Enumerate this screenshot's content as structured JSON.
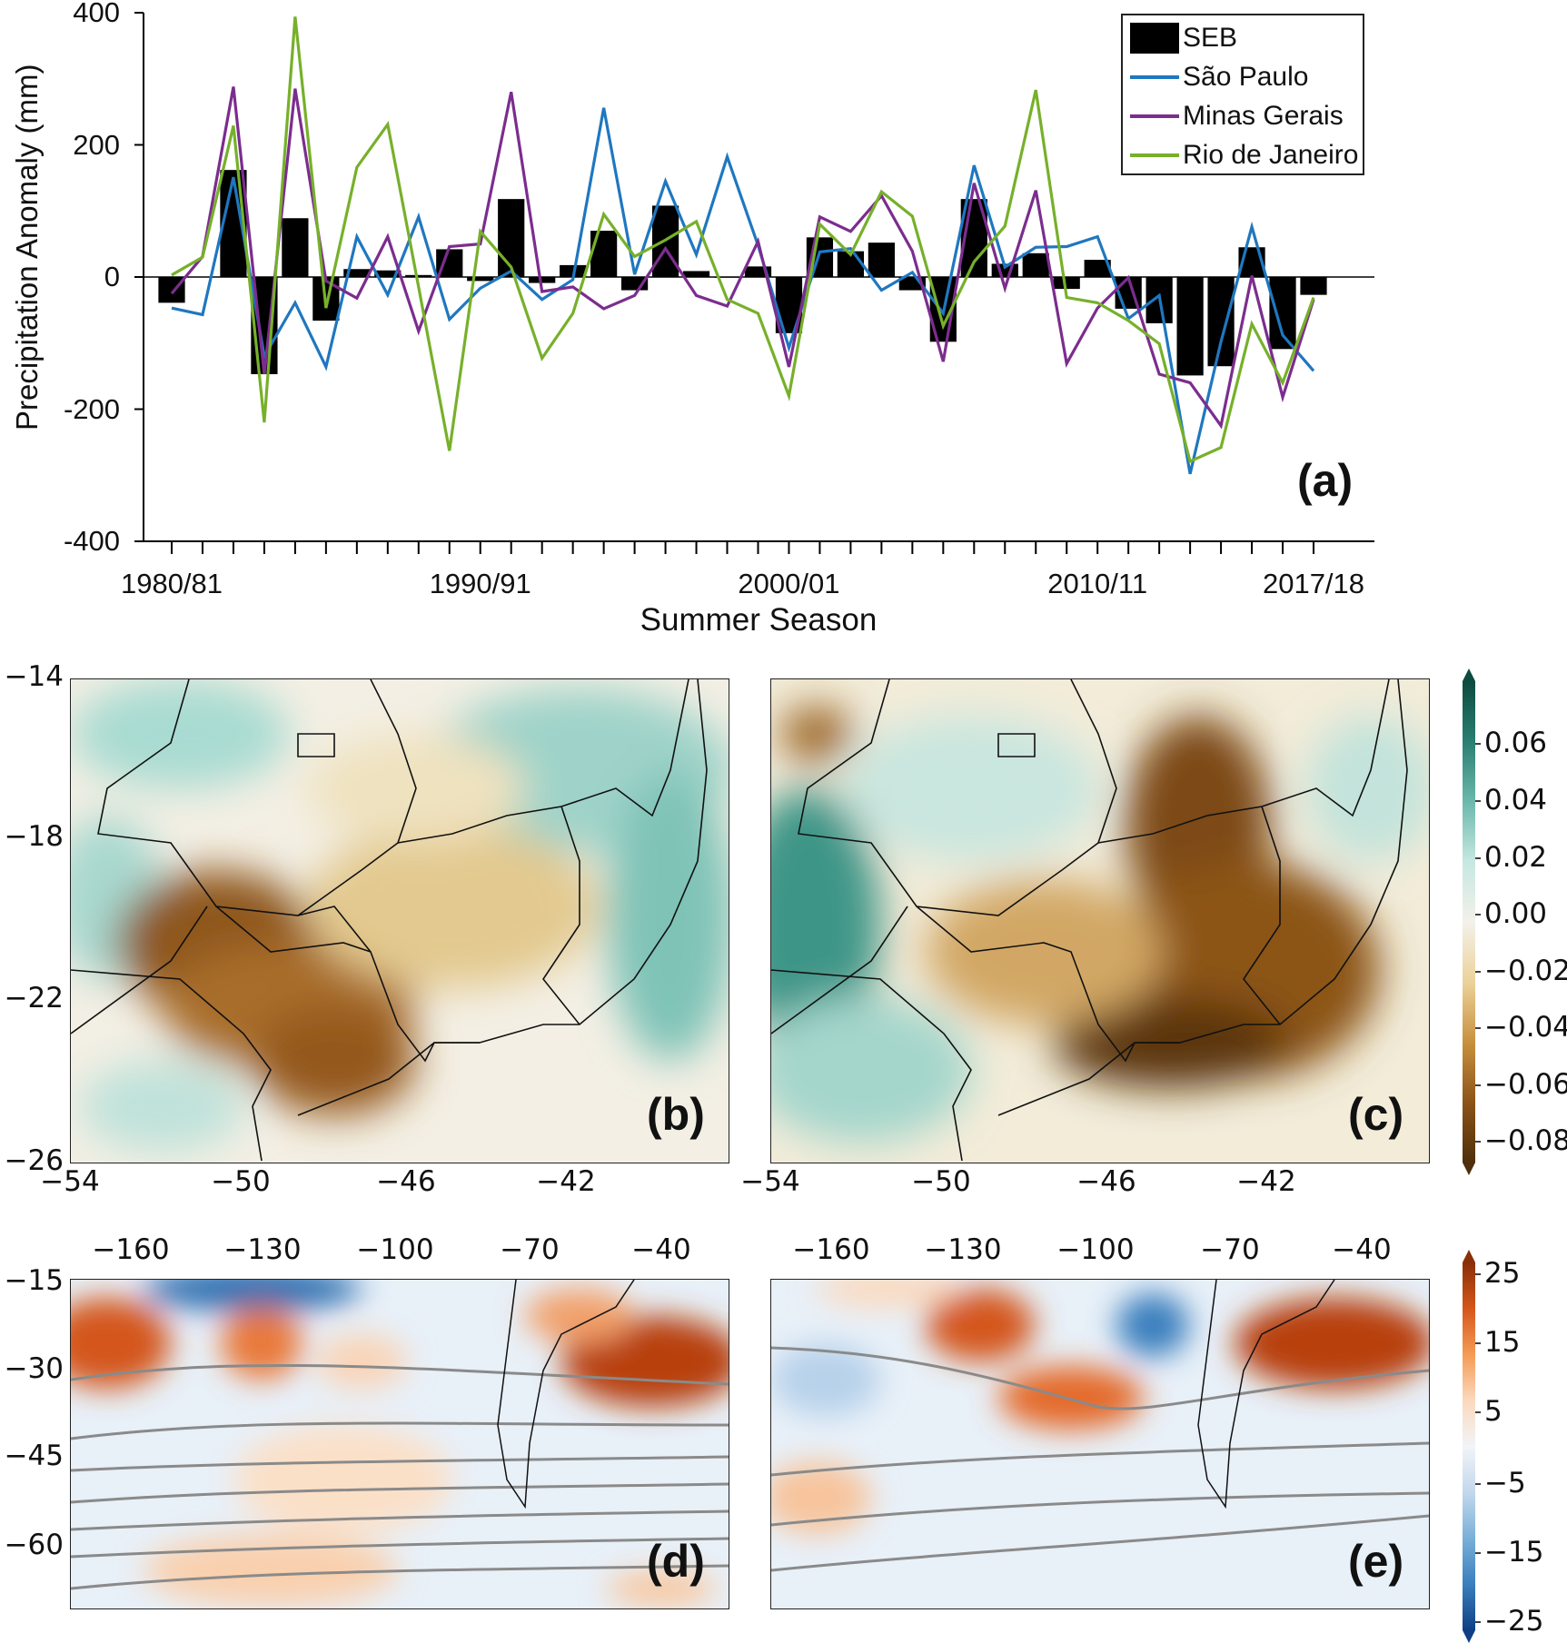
{
  "chart_data": [
    {
      "panel": "(a)",
      "type": "bar+line",
      "ylabel": "Precipitation Anomaly (mm)",
      "xlabel": "Summer Season",
      "ylim": [
        -400,
        400
      ],
      "yticks": [
        "-400",
        "-200",
        "0",
        "200",
        "400"
      ],
      "xtick_labels": [
        "1980/81",
        "1990/91",
        "2000/01",
        "2010/11",
        "2017/18"
      ],
      "xtick_label_index": [
        0,
        10,
        20,
        30,
        37
      ],
      "categories": [
        "1980/81",
        "1981/82",
        "1982/83",
        "1983/84",
        "1984/85",
        "1985/86",
        "1986/87",
        "1987/88",
        "1988/89",
        "1989/90",
        "1990/91",
        "1991/92",
        "1992/93",
        "1993/94",
        "1994/95",
        "1995/96",
        "1996/97",
        "1997/98",
        "1998/99",
        "1999/00",
        "2000/01",
        "2001/02",
        "2002/03",
        "2003/04",
        "2004/05",
        "2005/06",
        "2006/07",
        "2007/08",
        "2008/09",
        "2009/10",
        "2010/11",
        "2011/12",
        "2012/13",
        "2013/14",
        "2014/15",
        "2015/16",
        "2016/17",
        "2017/18"
      ],
      "legend_position": "top-right",
      "series": [
        {
          "name": "SEB",
          "kind": "bar",
          "color": "#000000",
          "values": [
            -39,
            0,
            162,
            -147,
            89,
            -66,
            12,
            10,
            3,
            42,
            -6,
            118,
            -9,
            18,
            70,
            -20,
            108,
            9,
            -1,
            16,
            -85,
            60,
            39,
            52,
            -20,
            -98,
            118,
            20,
            36,
            -18,
            26,
            -48,
            -70,
            -149,
            -135,
            45,
            -109,
            -27
          ]
        },
        {
          "name": "São Paulo",
          "kind": "line",
          "color": "#1f77c0",
          "values": [
            -47,
            -57,
            151,
            -120,
            -39,
            -136,
            61,
            -27,
            91,
            -64,
            -17,
            9,
            -34,
            -4,
            256,
            4,
            145,
            34,
            182,
            48,
            -107,
            38,
            43,
            -20,
            7,
            -55,
            169,
            15,
            45,
            46,
            61,
            -63,
            -28,
            -298,
            -98,
            76,
            -88,
            -142
          ]
        },
        {
          "name": "Minas Gerais",
          "kind": "line",
          "color": "#7b2d8e",
          "values": [
            -25,
            31,
            288,
            -147,
            285,
            -6,
            -32,
            61,
            -82,
            46,
            50,
            280,
            -22,
            -15,
            -48,
            -28,
            43,
            -28,
            -44,
            54,
            -136,
            91,
            69,
            123,
            39,
            -128,
            142,
            -17,
            131,
            -131,
            -47,
            -1,
            -147,
            -160,
            -225,
            2,
            -182,
            -34
          ]
        },
        {
          "name": "Rio de Janeiro",
          "kind": "line",
          "color": "#77b02a",
          "values": [
            3,
            30,
            229,
            -220,
            394,
            -47,
            166,
            231,
            -15,
            -263,
            69,
            15,
            -123,
            -55,
            95,
            31,
            56,
            84,
            -34,
            -55,
            -180,
            80,
            34,
            129,
            92,
            -74,
            23,
            77,
            283,
            -31,
            -39,
            -66,
            -101,
            -279,
            -258,
            -71,
            -160,
            -31
          ]
        }
      ]
    },
    {
      "panel": "(b)",
      "type": "map",
      "yticks": [
        "−14",
        "−18",
        "−22",
        "−26"
      ],
      "xticks": [
        "−54",
        "−50",
        "−46",
        "−42"
      ]
    },
    {
      "panel": "(c)",
      "type": "map",
      "xticks": [
        "−54",
        "−50",
        "−46",
        "−42"
      ]
    },
    {
      "type": "colorbar",
      "ticks": [
        "0.06",
        "0.04",
        "0.02",
        "0.00",
        "−0.02",
        "−0.04",
        "−0.06",
        "−0.08"
      ],
      "colors": [
        "#0d4a40",
        "#2a7f72",
        "#6cb8ac",
        "#c6e8e1",
        "#f3f1ea",
        "#ecd29a",
        "#c8913f",
        "#8c5418",
        "#4f2f0b"
      ]
    },
    {
      "panel": "(d)",
      "type": "map",
      "xticks": [
        "−160",
        "−130",
        "−100",
        "−70",
        "−40"
      ],
      "yticks": [
        "−15",
        "−30",
        "−45",
        "−60"
      ]
    },
    {
      "panel": "(e)",
      "type": "map",
      "xticks": [
        "−160",
        "−130",
        "−100",
        "−70",
        "−40"
      ]
    },
    {
      "type": "colorbar",
      "ticks": [
        "25",
        "15",
        "5",
        "−5",
        "−15",
        "−25"
      ],
      "colors": [
        "#8a2f08",
        "#d5561a",
        "#f59a56",
        "#fbd9bd",
        "#f2f4f8",
        "#c3d8ec",
        "#7ab0d8",
        "#3a7fbe",
        "#0f3f85"
      ]
    }
  ]
}
